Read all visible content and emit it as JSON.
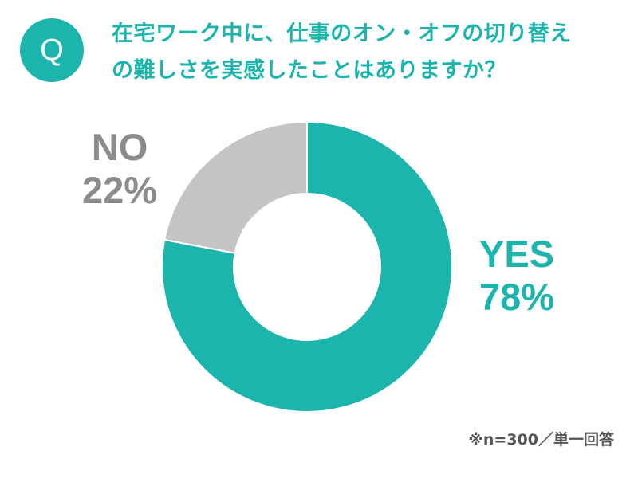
{
  "badge": {
    "letter": "Q"
  },
  "question": {
    "line1": "在宅ワーク中に、仕事のオン・オフの切り替え",
    "line2": "の難しさを実感したことはありますか？"
  },
  "colors": {
    "accent": "#1cb5ad",
    "no_slice": "#c4c4c4",
    "no_text": "#8c8c8c",
    "note_text": "#555555"
  },
  "chart_data": {
    "type": "pie",
    "donut": true,
    "categories": [
      "YES",
      "NO"
    ],
    "values": [
      78,
      22
    ],
    "unit": "%",
    "labels": [
      {
        "name": "YES",
        "value_text": "78%"
      },
      {
        "name": "NO",
        "value_text": "22%"
      }
    ],
    "start": "12 o'clock",
    "direction": "clockwise",
    "legend": "none (labels beside slices)"
  },
  "note": "※n=300／単一回答"
}
